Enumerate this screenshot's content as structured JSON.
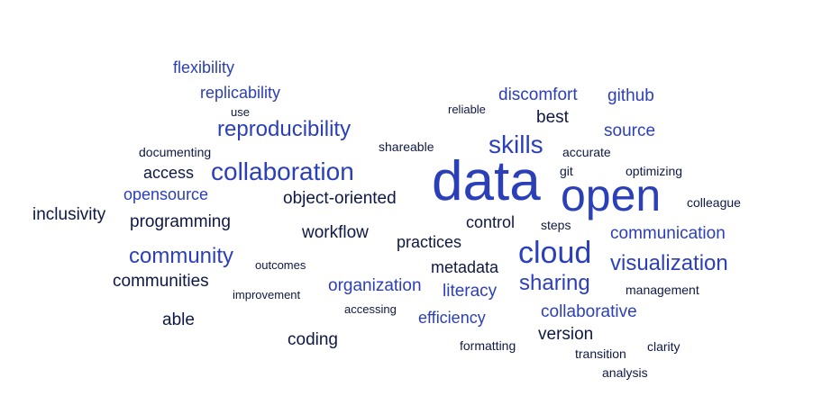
{
  "colors": {
    "background": "#ffffff",
    "bright_blue": "#2b3fb8",
    "mid_navy": "#1b2a78",
    "dark_navy": "#0f1844"
  },
  "words": {
    "data": "data",
    "open": "open",
    "collaboration": "collaboration",
    "cloud": "cloud",
    "skills": "skills",
    "reproducibility": "reproducibility",
    "community": "community",
    "visualization": "visualization",
    "sharing": "sharing",
    "communication": "communication",
    "collaborative": "collaborative",
    "discomfort": "discomfort",
    "github": "github",
    "source": "source",
    "best": "best",
    "flexibility": "flexibility",
    "replicability": "replicability",
    "opensource": "opensource",
    "organization": "organization",
    "literacy": "literacy",
    "efficiency": "efficiency",
    "object_oriented": "object-oriented",
    "inclusivity": "inclusivity",
    "programming": "programming",
    "access": "access",
    "workflow": "workflow",
    "practices": "practices",
    "control": "control",
    "metadata": "metadata",
    "communities": "communities",
    "able": "able",
    "coding": "coding",
    "version": "version",
    "use": "use",
    "reliable": "reliable",
    "documenting": "documenting",
    "shareable": "shareable",
    "accurate": "accurate",
    "git": "git",
    "optimizing": "optimizing",
    "colleague": "colleague",
    "steps": "steps",
    "outcomes": "outcomes",
    "improvement": "improvement",
    "accessing": "accessing",
    "management": "management",
    "formatting": "formatting",
    "transition": "transition",
    "clarity": "clarity",
    "analysis": "analysis"
  }
}
